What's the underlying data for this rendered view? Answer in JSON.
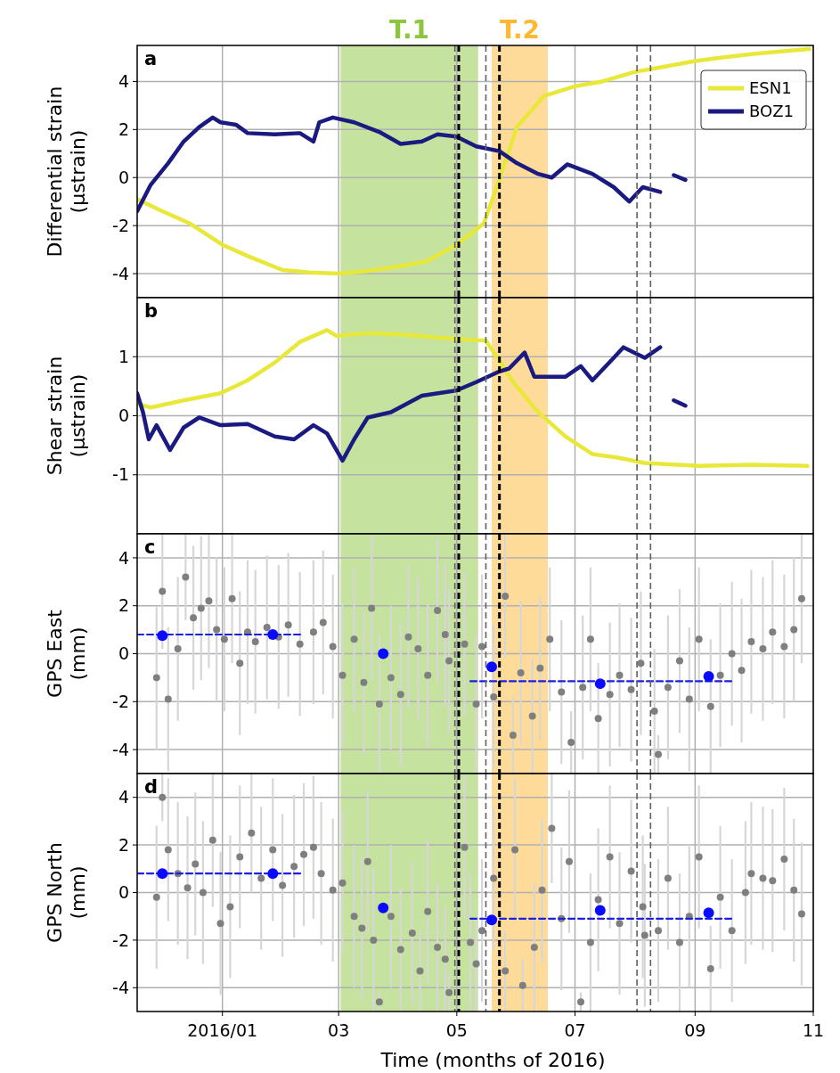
{
  "chart_data": [
    {
      "type": "line",
      "ylabel": "Differential strain\n(μstrain)",
      "annotations": [
        "a"
      ],
      "xlim": [
        "2015-11-18",
        "2016-11-01"
      ],
      "xticks": [
        "2016-01-01",
        "2016-03-01",
        "2016-05-01",
        "2016-07-01",
        "2016-09-01",
        "2016-11-01"
      ],
      "ylim": [
        -5,
        5.5
      ],
      "yticks": [
        -4,
        -2,
        0,
        2,
        4
      ],
      "tick_labels": "y",
      "grid": true,
      "legend": "top right",
      "bands": [
        {
          "axis": "x",
          "from": "2016-03-02",
          "to": "2016-05-12",
          "label": "T.1",
          "color": "#8cc63f"
        },
        {
          "axis": "x",
          "from": "2016-05-19",
          "to": "2016-06-17",
          "label": "T.2",
          "color": "#ffb833"
        }
      ],
      "ref_lines": [
        {
          "axis": "x",
          "value": "2016-04-30",
          "color": "#606060",
          "line_style": "dashed"
        },
        {
          "axis": "x",
          "value": "2016-05-02",
          "color": "#000000",
          "line_style": "dashed"
        },
        {
          "axis": "x",
          "value": "2016-05-16",
          "color": "#606060",
          "line_style": "dashed"
        },
        {
          "axis": "x",
          "value": "2016-05-23",
          "color": "#000000",
          "line_style": "dashed"
        },
        {
          "axis": "x",
          "value": "2016-08-02",
          "color": "#606060",
          "line_style": "dashed"
        },
        {
          "axis": "x",
          "value": "2016-08-09",
          "color": "#606060",
          "line_style": "dashed"
        }
      ],
      "series": [
        {
          "name": "ESN1",
          "color": "#e8e83a",
          "x": [
            "2015-11-18",
            "2015-12-01",
            "2015-12-15",
            "2016-01-01",
            "2016-01-15",
            "2016-02-01",
            "2016-02-15",
            "2016-03-01",
            "2016-03-15",
            "2016-04-01",
            "2016-04-15",
            "2016-05-01",
            "2016-05-15",
            "2016-05-22",
            "2016-06-01",
            "2016-06-15",
            "2016-07-01",
            "2016-07-15",
            "2016-08-01",
            "2016-08-15",
            "2016-09-01",
            "2016-09-15",
            "2016-10-01",
            "2016-10-15",
            "2016-10-30"
          ],
          "values": [
            -0.9,
            -1.4,
            -1.9,
            -2.8,
            -3.3,
            -3.85,
            -3.95,
            -4.0,
            -3.9,
            -3.7,
            -3.5,
            -2.8,
            -1.9,
            -0.3,
            2.1,
            3.4,
            3.8,
            4.0,
            4.4,
            4.6,
            4.85,
            5.0,
            5.15,
            5.25,
            5.35
          ]
        },
        {
          "name": "BOZ1",
          "color": "#1a1a80",
          "x": [
            "2015-11-18",
            "2015-11-25",
            "2015-12-04",
            "2015-12-12",
            "2015-12-20",
            "2015-12-27",
            "2015-12-31",
            "2016-01-08",
            "2016-01-14",
            "2016-01-28",
            "2016-02-10",
            "2016-02-17",
            "2016-02-20",
            "2016-02-27",
            "2016-03-09",
            "2016-03-22",
            "2016-04-02",
            "2016-04-13",
            "2016-04-21",
            "2016-05-01",
            "2016-05-11",
            "2016-05-23",
            "2016-06-01",
            "2016-06-12",
            "2016-06-19",
            "2016-06-27",
            "2016-07-10",
            "2016-07-21",
            "2016-07-29",
            "2016-08-05",
            "2016-08-14",
            "2016-08-17",
            "2016-08-21",
            "2016-08-27"
          ],
          "values": [
            -1.4,
            -0.3,
            0.6,
            1.5,
            2.1,
            2.5,
            2.3,
            2.2,
            1.85,
            1.8,
            1.85,
            1.5,
            2.3,
            2.5,
            2.3,
            1.9,
            1.4,
            1.5,
            1.8,
            1.7,
            1.3,
            1.1,
            0.6,
            0.15,
            0.0,
            0.55,
            0.15,
            -0.4,
            -1.0,
            -0.4,
            -0.6,
            null,
            0.1,
            -0.1
          ]
        }
      ]
    },
    {
      "type": "line",
      "ylabel": "Shear strain\n(μstrain)",
      "annotations": [
        "b"
      ],
      "xlim": [
        "2015-11-18",
        "2016-11-01"
      ],
      "xticks": [
        "2016-01-01",
        "2016-03-01",
        "2016-05-01",
        "2016-07-01",
        "2016-09-01",
        "2016-11-01"
      ],
      "ylim": [
        -2,
        2
      ],
      "yticks": [
        -1,
        0,
        1
      ],
      "tick_labels": "y",
      "grid": true,
      "bands": [
        {
          "axis": "x",
          "from": "2016-03-02",
          "to": "2016-05-12",
          "color": "#8cc63f"
        },
        {
          "axis": "x",
          "from": "2016-05-19",
          "to": "2016-06-17",
          "color": "#ffb833"
        }
      ],
      "ref_lines": [
        {
          "axis": "x",
          "value": "2016-04-30",
          "color": "#606060",
          "line_style": "dashed"
        },
        {
          "axis": "x",
          "value": "2016-05-02",
          "color": "#000000",
          "line_style": "dashed"
        },
        {
          "axis": "x",
          "value": "2016-05-16",
          "color": "#606060",
          "line_style": "dashed"
        },
        {
          "axis": "x",
          "value": "2016-05-23",
          "color": "#000000",
          "line_style": "dashed"
        },
        {
          "axis": "x",
          "value": "2016-08-02",
          "color": "#606060",
          "line_style": "dashed"
        },
        {
          "axis": "x",
          "value": "2016-08-09",
          "color": "#606060",
          "line_style": "dashed"
        }
      ],
      "series": [
        {
          "color": "#e8e83a",
          "x": [
            "2015-11-18",
            "2015-11-25",
            "2015-12-12",
            "2015-12-31",
            "2016-01-14",
            "2016-01-28",
            "2016-02-10",
            "2016-02-24",
            "2016-02-29",
            "2016-03-16",
            "2016-04-05",
            "2016-05-01",
            "2016-05-16",
            "2016-05-23",
            "2016-05-30",
            "2016-06-12",
            "2016-06-26",
            "2016-07-10",
            "2016-07-23",
            "2016-08-06",
            "2016-09-03",
            "2016-09-30",
            "2016-10-29"
          ],
          "values": [
            0.2,
            0.14,
            0.26,
            0.38,
            0.6,
            0.9,
            1.25,
            1.45,
            1.35,
            1.4,
            1.37,
            1.3,
            1.27,
            0.93,
            0.57,
            0.06,
            -0.35,
            -0.65,
            -0.71,
            -0.8,
            -0.85,
            -0.83,
            -0.85
          ]
        },
        {
          "color": "#1a1a80",
          "x": [
            "2015-11-18",
            "2015-11-21",
            "2015-11-24",
            "2015-11-28",
            "2015-12-05",
            "2015-12-12",
            "2015-12-20",
            "2015-12-31",
            "2016-01-14",
            "2016-01-28",
            "2016-02-07",
            "2016-02-17",
            "2016-02-24",
            "2016-03-03",
            "2016-03-09",
            "2016-03-16",
            "2016-03-28",
            "2016-04-13",
            "2016-05-01",
            "2016-05-11",
            "2016-05-23",
            "2016-05-28",
            "2016-06-05",
            "2016-06-10",
            "2016-06-26",
            "2016-07-04",
            "2016-07-10",
            "2016-07-21",
            "2016-07-26",
            "2016-08-06",
            "2016-08-14",
            "2016-08-17",
            "2016-08-21",
            "2016-08-27"
          ],
          "values": [
            0.38,
            0.06,
            -0.4,
            -0.16,
            -0.58,
            -0.2,
            -0.03,
            -0.16,
            -0.14,
            -0.35,
            -0.4,
            -0.16,
            -0.3,
            -0.76,
            -0.4,
            -0.03,
            0.06,
            0.34,
            0.43,
            0.57,
            0.75,
            0.8,
            1.07,
            0.66,
            0.66,
            0.84,
            0.6,
            0.98,
            1.16,
            0.98,
            1.16,
            null,
            0.26,
            0.17
          ]
        }
      ]
    },
    {
      "type": "scatter",
      "ylabel": "GPS East\n(mm)",
      "annotations": [
        "c"
      ],
      "xlim": [
        "2015-11-18",
        "2016-11-01"
      ],
      "xticks": [
        "2016-01-01",
        "2016-03-01",
        "2016-05-01",
        "2016-07-01",
        "2016-09-01",
        "2016-11-01"
      ],
      "ylim": [
        -5,
        5
      ],
      "yticks": [
        -4,
        -2,
        0,
        2,
        4
      ],
      "tick_labels": "y",
      "grid": true,
      "bands": [
        {
          "axis": "x",
          "from": "2016-03-02",
          "to": "2016-05-12",
          "color": "#8cc63f"
        },
        {
          "axis": "x",
          "from": "2016-05-19",
          "to": "2016-06-17",
          "color": "#ffb833"
        }
      ],
      "ref_lines": [
        {
          "axis": "x",
          "value": "2016-04-30",
          "color": "#606060",
          "line_style": "dashed"
        },
        {
          "axis": "x",
          "value": "2016-05-02",
          "color": "#000000",
          "line_style": "dashed"
        },
        {
          "axis": "x",
          "value": "2016-05-16",
          "color": "#606060",
          "line_style": "dashed"
        },
        {
          "axis": "x",
          "value": "2016-05-23",
          "color": "#000000",
          "line_style": "dashed"
        },
        {
          "axis": "x",
          "value": "2016-08-02",
          "color": "#606060",
          "line_style": "dashed"
        },
        {
          "axis": "x",
          "value": "2016-08-09",
          "color": "#606060",
          "line_style": "dashed"
        }
      ],
      "series": [
        {
          "marker": "circle",
          "color": "#7f7f7f",
          "x": [
            "2015-11-28",
            "2015-12-01",
            "2015-12-04",
            "2015-12-09",
            "2015-12-13",
            "2015-12-17",
            "2015-12-21",
            "2015-12-25",
            "2015-12-29",
            "2016-01-02",
            "2016-01-06",
            "2016-01-10",
            "2016-01-14",
            "2016-01-18",
            "2016-01-24",
            "2016-01-30",
            "2016-02-04",
            "2016-02-10",
            "2016-02-17",
            "2016-02-22",
            "2016-02-27",
            "2016-03-03",
            "2016-03-09",
            "2016-03-14",
            "2016-03-18",
            "2016-03-22",
            "2016-03-28",
            "2016-04-02",
            "2016-04-06",
            "2016-04-11",
            "2016-04-16",
            "2016-04-21",
            "2016-04-25",
            "2016-04-27",
            "2016-05-05",
            "2016-05-11",
            "2016-05-14",
            "2016-05-20",
            "2016-05-26",
            "2016-05-30",
            "2016-06-03",
            "2016-06-09",
            "2016-06-13",
            "2016-06-18",
            "2016-06-24",
            "2016-06-29",
            "2016-07-05",
            "2016-07-09",
            "2016-07-13",
            "2016-07-19",
            "2016-07-24",
            "2016-07-30",
            "2016-08-04",
            "2016-08-11",
            "2016-08-13",
            "2016-08-18",
            "2016-08-24",
            "2016-08-29",
            "2016-09-03",
            "2016-09-09",
            "2016-09-14",
            "2016-09-20",
            "2016-09-25",
            "2016-09-30",
            "2016-10-06",
            "2016-10-11",
            "2016-10-17",
            "2016-10-22",
            "2016-10-26"
          ],
          "values": [
            -1.0,
            2.6,
            -1.9,
            0.2,
            3.2,
            1.5,
            1.9,
            2.2,
            1.0,
            0.6,
            2.3,
            -0.4,
            0.9,
            0.5,
            1.1,
            0.7,
            1.2,
            0.4,
            0.9,
            1.3,
            0.3,
            -0.9,
            0.6,
            -1.2,
            1.9,
            -2.1,
            -1.0,
            -1.7,
            0.7,
            0.2,
            -0.9,
            1.8,
            0.8,
            -0.3,
            0.4,
            -2.1,
            0.3,
            -1.8,
            2.4,
            -3.4,
            -0.8,
            -2.6,
            -0.6,
            0.6,
            -1.6,
            -3.7,
            -1.4,
            0.6,
            -2.7,
            -1.7,
            -0.9,
            -1.5,
            -0.4,
            -2.4,
            -4.2,
            -1.4,
            -0.3,
            -1.9,
            0.6,
            -2.2,
            -0.9,
            0.0,
            -0.7,
            0.5,
            0.2,
            0.9,
            0.3,
            1.0,
            2.3
          ],
          "errors": [
            3,
            2.4,
            3,
            3,
            1.8,
            3,
            3,
            2.8,
            3,
            3,
            2.7,
            3,
            3,
            3,
            3,
            3,
            3,
            3,
            3,
            3,
            3,
            3,
            3,
            3,
            3,
            2.9,
            3,
            3,
            3,
            3,
            3,
            3,
            3,
            3,
            3,
            2.9,
            3,
            3,
            2.6,
            1.6,
            3,
            2.4,
            3,
            3,
            3,
            1.3,
            3,
            3,
            2.3,
            3,
            3,
            3,
            3,
            2.6,
            0.8,
            3,
            3,
            3,
            3,
            2.8,
            3,
            3,
            3,
            3,
            3,
            3,
            3,
            3,
            2.7
          ]
        },
        {
          "type": "line",
          "line_style": "dashed",
          "color": "#1f1fe0",
          "x": [
            "2015-11-18",
            "2016-02-11"
          ],
          "values": [
            0.8,
            0.8
          ]
        },
        {
          "type": "line",
          "line_style": "dashed",
          "color": "#1f1fe0",
          "x": [
            "2016-05-08",
            "2016-09-20"
          ],
          "values": [
            -1.15,
            -1.15
          ]
        },
        {
          "type": "scatter",
          "marker": "circle",
          "color": "#0a0aff",
          "x": [
            "2015-12-01",
            "2016-01-27",
            "2016-03-24",
            "2016-05-19",
            "2016-07-14",
            "2016-09-08"
          ],
          "values": [
            0.75,
            0.8,
            0.0,
            -0.55,
            -1.25,
            -0.95
          ]
        }
      ]
    },
    {
      "type": "scatter",
      "ylabel": "GPS North\n(mm)",
      "xlabel": "Time (months of 2016)",
      "annotations": [
        "d"
      ],
      "xlim": [
        "2015-11-18",
        "2016-11-01"
      ],
      "xticks": [
        {
          "value": "2016-01-01",
          "label": "2016/01"
        },
        {
          "value": "2016-03-01",
          "label": "03"
        },
        {
          "value": "2016-05-01",
          "label": "05"
        },
        {
          "value": "2016-07-01",
          "label": "07"
        },
        {
          "value": "2016-09-01",
          "label": "09"
        },
        {
          "value": "2016-11-01",
          "label": "11"
        }
      ],
      "ylim": [
        -5,
        5
      ],
      "yticks": [
        -4,
        -2,
        0,
        2,
        4
      ],
      "grid": true,
      "bands": [
        {
          "axis": "x",
          "from": "2016-03-02",
          "to": "2016-05-12",
          "color": "#8cc63f"
        },
        {
          "axis": "x",
          "from": "2016-05-19",
          "to": "2016-06-17",
          "color": "#ffb833"
        }
      ],
      "ref_lines": [
        {
          "axis": "x",
          "value": "2016-04-30",
          "color": "#606060",
          "line_style": "dashed"
        },
        {
          "axis": "x",
          "value": "2016-05-02",
          "color": "#000000",
          "line_style": "dashed"
        },
        {
          "axis": "x",
          "value": "2016-05-16",
          "color": "#606060",
          "line_style": "dashed"
        },
        {
          "axis": "x",
          "value": "2016-05-23",
          "color": "#000000",
          "line_style": "dashed"
        },
        {
          "axis": "x",
          "value": "2016-08-02",
          "color": "#606060",
          "line_style": "dashed"
        },
        {
          "axis": "x",
          "value": "2016-08-09",
          "color": "#606060",
          "line_style": "dashed"
        }
      ],
      "series": [
        {
          "marker": "circle",
          "color": "#7f7f7f",
          "x": [
            "2015-11-28",
            "2015-12-01",
            "2015-12-04",
            "2015-12-09",
            "2015-12-14",
            "2015-12-18",
            "2015-12-22",
            "2015-12-27",
            "2015-12-31",
            "2016-01-05",
            "2016-01-10",
            "2016-01-16",
            "2016-01-21",
            "2016-01-27",
            "2016-02-01",
            "2016-02-07",
            "2016-02-12",
            "2016-02-17",
            "2016-02-21",
            "2016-02-27",
            "2016-03-03",
            "2016-03-09",
            "2016-03-13",
            "2016-03-16",
            "2016-03-19",
            "2016-03-22",
            "2016-03-28",
            "2016-04-02",
            "2016-04-08",
            "2016-04-12",
            "2016-04-16",
            "2016-04-21",
            "2016-04-25",
            "2016-04-27",
            "2016-05-05",
            "2016-05-08",
            "2016-05-11",
            "2016-05-14",
            "2016-05-20",
            "2016-05-26",
            "2016-05-31",
            "2016-06-04",
            "2016-06-10",
            "2016-06-14",
            "2016-06-19",
            "2016-06-24",
            "2016-06-28",
            "2016-07-04",
            "2016-07-09",
            "2016-07-13",
            "2016-07-19",
            "2016-07-24",
            "2016-07-30",
            "2016-08-05",
            "2016-08-06",
            "2016-08-13",
            "2016-08-18",
            "2016-08-24",
            "2016-08-29",
            "2016-09-03",
            "2016-09-09",
            "2016-09-14",
            "2016-09-20",
            "2016-09-27",
            "2016-09-30",
            "2016-10-06",
            "2016-10-11",
            "2016-10-17",
            "2016-10-22",
            "2016-10-26"
          ],
          "values": [
            -0.2,
            4.0,
            1.8,
            0.8,
            0.2,
            1.2,
            0.0,
            2.2,
            -1.3,
            -0.6,
            1.5,
            2.5,
            0.6,
            1.8,
            0.3,
            1.1,
            1.6,
            1.9,
            0.8,
            0.1,
            0.4,
            -1.0,
            -1.5,
            1.3,
            -2.0,
            -4.6,
            -1.0,
            -2.4,
            -1.7,
            -3.3,
            -0.8,
            -2.3,
            -2.8,
            -4.2,
            1.9,
            -2.1,
            -3.0,
            -1.6,
            0.6,
            -3.3,
            1.8,
            -3.9,
            -2.3,
            0.1,
            2.7,
            -1.1,
            1.3,
            -4.6,
            -2.1,
            -0.3,
            1.5,
            -1.3,
            0.9,
            -0.6,
            -1.8,
            -1.6,
            0.6,
            -2.1,
            -1.0,
            1.5,
            -3.2,
            -0.2,
            -1.6,
            0.0,
            0.8,
            0.6,
            0.5,
            1.4,
            0.1,
            -0.9
          ],
          "errors": [
            3,
            1.0,
            3,
            3,
            3,
            3,
            3,
            2.8,
            3,
            3,
            3,
            2.5,
            3,
            3,
            3,
            3,
            3,
            3,
            3,
            3,
            3,
            3,
            3,
            3,
            3,
            0.4,
            3,
            2.6,
            3,
            1.7,
            3,
            2.7,
            2.2,
            0.8,
            3,
            2.9,
            2.0,
            3,
            3,
            1.7,
            3,
            1.1,
            2.7,
            3,
            2.3,
            3,
            3,
            0.4,
            2.9,
            3,
            3,
            3,
            3,
            3,
            3,
            3,
            3,
            2.9,
            3,
            3,
            1.8,
            3,
            3,
            3,
            3,
            3,
            3,
            3,
            3,
            3
          ]
        },
        {
          "type": "line",
          "line_style": "dashed",
          "color": "#1f1fe0",
          "x": [
            "2015-11-18",
            "2016-02-11"
          ],
          "values": [
            0.8,
            0.8
          ]
        },
        {
          "type": "line",
          "line_style": "dashed",
          "color": "#1f1fe0",
          "x": [
            "2016-05-08",
            "2016-09-20"
          ],
          "values": [
            -1.1,
            -1.1
          ]
        },
        {
          "type": "scatter",
          "marker": "circle",
          "color": "#0a0aff",
          "x": [
            "2015-12-01",
            "2016-01-27",
            "2016-03-24",
            "2016-05-19",
            "2016-07-14",
            "2016-09-08"
          ],
          "values": [
            0.8,
            0.8,
            -0.65,
            -1.15,
            -0.75,
            -0.85
          ]
        }
      ]
    }
  ]
}
